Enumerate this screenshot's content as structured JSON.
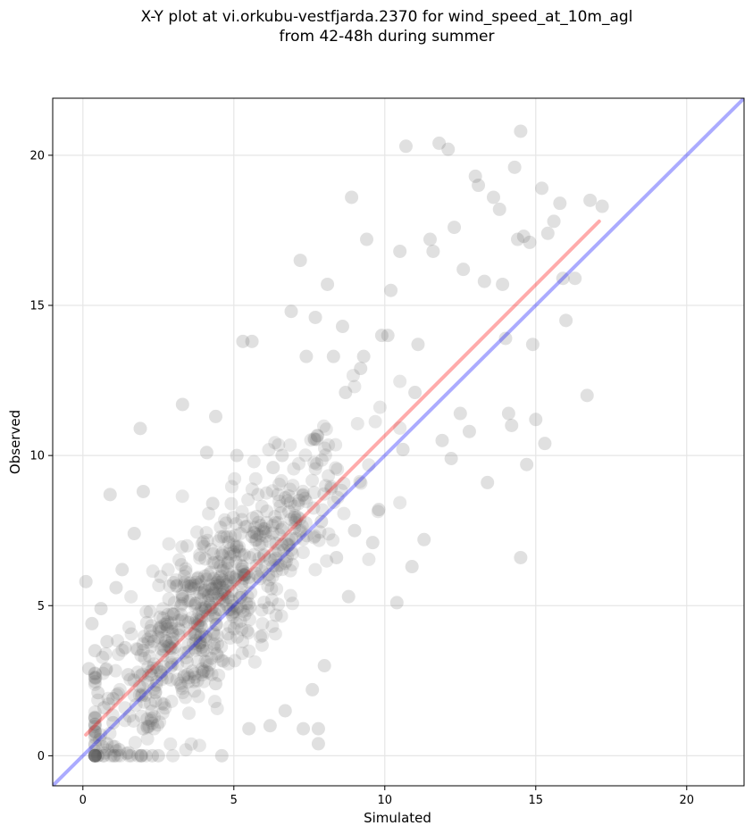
{
  "chart_data": {
    "type": "scatter",
    "title": "X-Y plot at vi.orkubu-vestfjarda.2370 for wind_speed_at_10m_agl\nfrom 42-48h during summer",
    "xlabel": "Simulated",
    "ylabel": "Observed",
    "xlim": [
      -1,
      21.9
    ],
    "ylim": [
      -1,
      21.9
    ],
    "xticks": [
      0,
      5,
      10,
      15,
      20
    ],
    "yticks": [
      0,
      5,
      10,
      15,
      20
    ],
    "grid": true,
    "legend": "none",
    "colors": {
      "points": "#555555",
      "fit_line": "#ff0000",
      "identity_line": "#0000ff"
    },
    "fit_line": {
      "x": [
        0.1,
        17.1
      ],
      "y": [
        0.7,
        17.8
      ]
    },
    "identity_line": {
      "x": [
        -1,
        21.9
      ],
      "y": [
        -1,
        21.9
      ]
    },
    "points": {
      "x": [
        0.1,
        0.2,
        0.3,
        0.4,
        0.5,
        0.5,
        0.6,
        0.7,
        0.8,
        0.9,
        1.0,
        1.1,
        1.2,
        1.3,
        1.4,
        1.5,
        1.7,
        1.9,
        2.0,
        2.3,
        2.5,
        3.3,
        4.1,
        4.3,
        4.4,
        4.6,
        5.1,
        5.3,
        5.5,
        5.6,
        6.2,
        6.7,
        6.9,
        7.2,
        7.4,
        7.7,
        7.8,
        7.8,
        8.1,
        8.3,
        8.6,
        8.9,
        9.2,
        9.4,
        10.1,
        10.5,
        10.7,
        11.1,
        11.5,
        11.6,
        11.8,
        12.1,
        12.3,
        12.6,
        13.0,
        13.1,
        13.3,
        13.6,
        13.8,
        14.0,
        14.1,
        14.3,
        14.4,
        14.5,
        14.6,
        14.8,
        14.9,
        15.0,
        15.2,
        15.4,
        15.6,
        15.8,
        16.0,
        16.7,
        16.8,
        17.2,
        9.0,
        8.8,
        9.6,
        10.4,
        11.3,
        10.6,
        10.9,
        12.2,
        12.8,
        13.4,
        14.2,
        14.5,
        11.0,
        9.8,
        8.4,
        7.6,
        6.3,
        3.3,
        2.0,
        1.0,
        0.8,
        2.9,
        4.4,
        5.6,
        6.6,
        3.8,
        7.3,
        8.0,
        9.3,
        10.2,
        11.9,
        12.5,
        13.9,
        14.7,
        15.3,
        15.9,
        16.3,
        9.9,
        8.7,
        7.9
      ],
      "y": [
        5.8,
        2.9,
        4.4,
        3.5,
        2.1,
        0.0,
        4.9,
        1.6,
        3.8,
        8.7,
        1.1,
        5.6,
        0.2,
        6.2,
        3.6,
        2.7,
        7.4,
        10.9,
        8.8,
        0.0,
        0.0,
        11.7,
        10.1,
        8.4,
        11.3,
        0.0,
        10.0,
        13.8,
        0.9,
        13.8,
        1.0,
        1.5,
        14.8,
        16.5,
        13.3,
        14.6,
        0.9,
        0.4,
        15.7,
        13.3,
        14.3,
        18.6,
        12.9,
        17.2,
        14.0,
        16.8,
        20.3,
        13.7,
        17.2,
        16.8,
        20.4,
        20.2,
        17.6,
        16.2,
        19.3,
        19.0,
        15.8,
        18.6,
        18.2,
        13.9,
        11.4,
        19.6,
        17.2,
        20.8,
        17.3,
        17.1,
        13.7,
        11.2,
        18.9,
        17.4,
        17.8,
        18.4,
        14.5,
        12.0,
        18.5,
        18.3,
        7.5,
        5.3,
        7.1,
        5.1,
        7.2,
        10.2,
        6.3,
        9.9,
        10.8,
        9.1,
        11.0,
        6.6,
        12.1,
        8.2,
        6.6,
        2.2,
        9.6,
        5.3,
        0.9,
        1.9,
        0.4,
        3.6,
        2.4,
        7.3,
        10.0,
        5.9,
        0.9,
        3.0,
        13.3,
        15.5,
        10.5,
        11.4,
        15.7,
        9.7,
        10.4,
        15.9,
        15.9,
        14.0,
        12.1,
        7.8
      ],
      "cloud_note": "Additional dense cluster of several hundred overlapping semi-transparent points roughly along y≈x between 0 and 10."
    }
  }
}
